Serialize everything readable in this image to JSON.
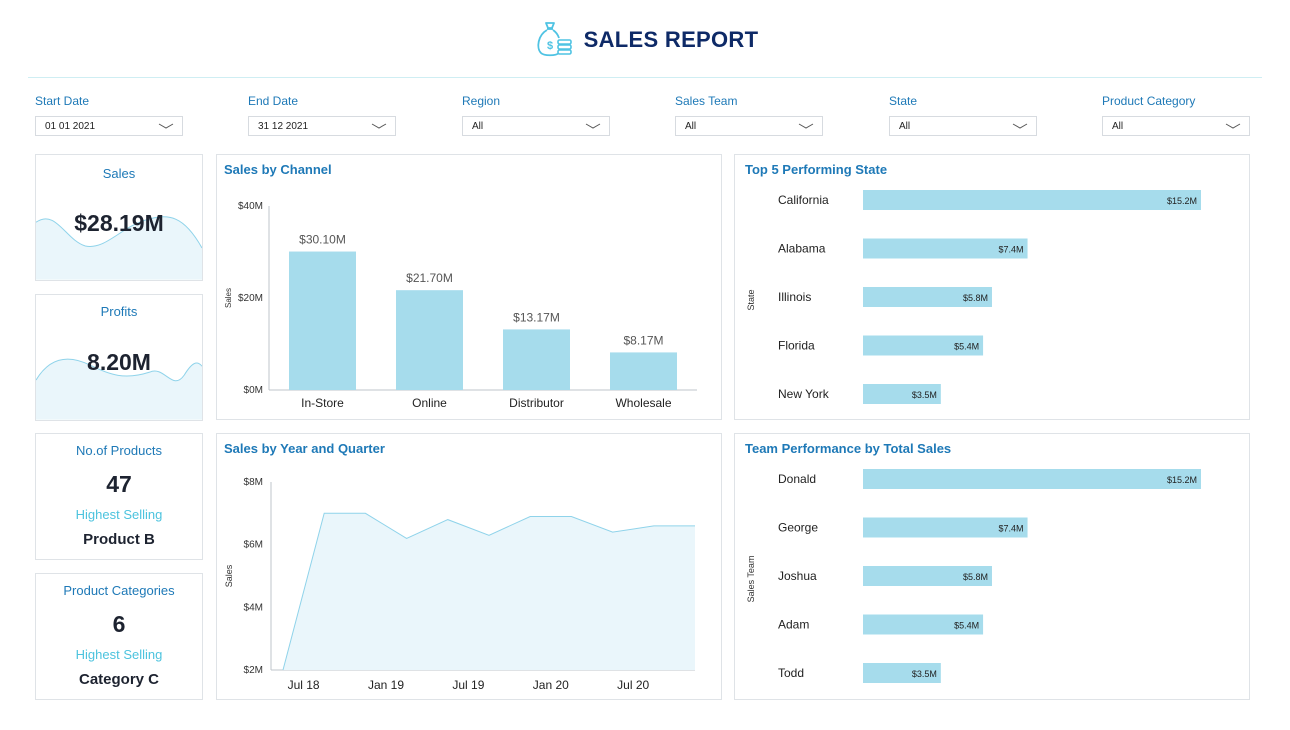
{
  "header": {
    "title": "SALES REPORT",
    "icon": "money-bag-coins-icon"
  },
  "filters": [
    {
      "id": "start-date",
      "label": "Start Date",
      "value": "01 01 2021"
    },
    {
      "id": "end-date",
      "label": "End Date",
      "value": "31 12 2021"
    },
    {
      "id": "region",
      "label": "Region",
      "value": "All"
    },
    {
      "id": "sales-team",
      "label": "Sales Team",
      "value": "All"
    },
    {
      "id": "state",
      "label": "State",
      "value": "All"
    },
    {
      "id": "product-category",
      "label": "Product Category",
      "value": "All"
    }
  ],
  "kpis": {
    "sales": {
      "label": "Sales",
      "value": "$28.19M"
    },
    "profits": {
      "label": "Profits",
      "value": "8.20M"
    },
    "products": {
      "label": "No.of Products",
      "value": "47",
      "sub_label": "Highest Selling",
      "sub_value": "Product B"
    },
    "categories": {
      "label": "Product Categories",
      "value": "6",
      "sub_label": "Highest Selling",
      "sub_value": "Category C"
    }
  },
  "colors": {
    "accent": "#1e79b7",
    "bar": "#a6dcec",
    "title": "#0e2a67",
    "area_fill": "#eaf6fb",
    "area_line": "#8fd3ea"
  },
  "chart_data": [
    {
      "id": "sales-by-channel",
      "type": "bar",
      "title": "Sales by Channel",
      "categories": [
        "In-Store",
        "Online",
        "Distributor",
        "Wholesale"
      ],
      "values": [
        30.1,
        21.7,
        13.17,
        8.17
      ],
      "data_labels": [
        "$30.10M",
        "$21.70M",
        "$13.17M",
        "$8.17M"
      ],
      "ylabel": "Sales",
      "ylim": [
        0,
        40
      ],
      "yticks": [
        0,
        20,
        40
      ],
      "ytick_labels": [
        "$0M",
        "$20M",
        "$40M"
      ]
    },
    {
      "id": "top-5-states",
      "type": "bar",
      "orientation": "horizontal",
      "title": "Top 5 Performing State",
      "categories": [
        "California",
        "Alabama",
        "Illinois",
        "Florida",
        "New York"
      ],
      "values": [
        15.2,
        7.4,
        5.8,
        5.4,
        3.5
      ],
      "data_labels": [
        "$15.2M",
        "$7.4M",
        "$5.8M",
        "$5.4M",
        "$3.5M"
      ],
      "ylabel": "State",
      "xlim": [
        0,
        15.2
      ]
    },
    {
      "id": "sales-by-year-quarter",
      "type": "area",
      "title": "Sales by Year and Quarter",
      "x": [
        "2018-Q2",
        "2018-Q3",
        "2018-Q4",
        "2019-Q1",
        "2019-Q2",
        "2019-Q3",
        "2019-Q4",
        "2020-Q1",
        "2020-Q2",
        "2020-Q3",
        "2020-Q4"
      ],
      "values": [
        1.9,
        7.0,
        7.0,
        6.2,
        6.8,
        6.3,
        6.9,
        6.9,
        6.4,
        6.6,
        6.6
      ],
      "xtick_labels": [
        "Jul 18",
        "Jan 19",
        "Jul 19",
        "Jan 20",
        "Jul 20"
      ],
      "xtick_index": [
        0.5,
        2.5,
        4.5,
        6.5,
        8.5
      ],
      "ylabel": "Sales",
      "ylim": [
        2,
        8
      ],
      "yticks": [
        2,
        4,
        6,
        8
      ],
      "ytick_labels": [
        "$2M",
        "$4M",
        "$6M",
        "$8M"
      ]
    },
    {
      "id": "team-performance",
      "type": "bar",
      "orientation": "horizontal",
      "title": "Team Performance by Total Sales",
      "categories": [
        "Donald",
        "George",
        "Joshua",
        "Adam",
        "Todd"
      ],
      "values": [
        15.2,
        7.4,
        5.8,
        5.4,
        3.5
      ],
      "data_labels": [
        "$15.2M",
        "$7.4M",
        "$5.8M",
        "$5.4M",
        "$3.5M"
      ],
      "ylabel": "Sales Team",
      "xlim": [
        0,
        15.2
      ]
    }
  ]
}
